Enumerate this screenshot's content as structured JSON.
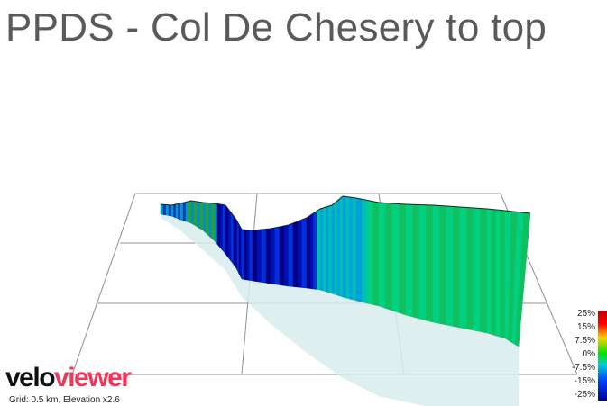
{
  "title": "PPDS - Col De Chesery to top",
  "logo": {
    "velo": "velo",
    "viewer": "viewer"
  },
  "grid_info": "Grid: 0.5 km, Elevation x2.6",
  "legend": {
    "labels": [
      "25%",
      "15%",
      "7.5%",
      "0%",
      "-7.5%",
      "-15%",
      "-25%"
    ],
    "colors": [
      "#c00000",
      "#ff0000",
      "#ffd000",
      "#00e000",
      "#00d0d0",
      "#0040ff",
      "#000090"
    ]
  }
}
